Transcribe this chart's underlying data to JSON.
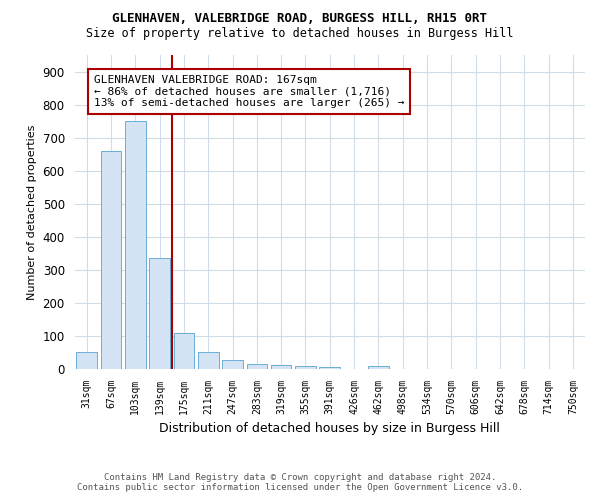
{
  "title1": "GLENHAVEN, VALEBRIDGE ROAD, BURGESS HILL, RH15 0RT",
  "title2": "Size of property relative to detached houses in Burgess Hill",
  "xlabel": "Distribution of detached houses by size in Burgess Hill",
  "ylabel": "Number of detached properties",
  "categories": [
    "31sqm",
    "67sqm",
    "103sqm",
    "139sqm",
    "175sqm",
    "211sqm",
    "247sqm",
    "283sqm",
    "319sqm",
    "355sqm",
    "391sqm",
    "426sqm",
    "462sqm",
    "498sqm",
    "534sqm",
    "570sqm",
    "606sqm",
    "642sqm",
    "678sqm",
    "714sqm",
    "750sqm"
  ],
  "values": [
    50,
    660,
    750,
    335,
    108,
    50,
    25,
    15,
    10,
    8,
    6,
    0,
    8,
    0,
    0,
    0,
    0,
    0,
    0,
    0,
    0
  ],
  "bar_color": "#d4e4f4",
  "bar_edge_color": "#6aaed6",
  "vline_pos": 3.5,
  "vline_color": "#aa0000",
  "annotation_text": "GLENHAVEN VALEBRIDGE ROAD: 167sqm\n← 86% of detached houses are smaller (1,716)\n13% of semi-detached houses are larger (265) →",
  "annotation_box_color": "white",
  "annotation_box_edge_color": "#aa0000",
  "ylim": [
    0,
    950
  ],
  "yticks": [
    0,
    100,
    200,
    300,
    400,
    500,
    600,
    700,
    800,
    900
  ],
  "footer1": "Contains HM Land Registry data © Crown copyright and database right 2024.",
  "footer2": "Contains public sector information licensed under the Open Government Licence v3.0.",
  "bg_color": "#ffffff",
  "grid_color": "#d0dce8"
}
